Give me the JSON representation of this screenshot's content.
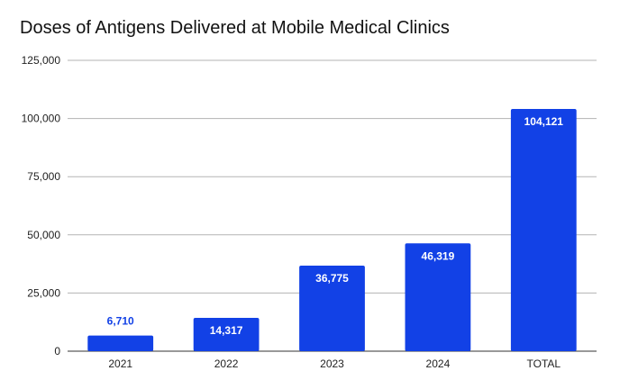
{
  "chart_data": {
    "type": "bar",
    "title": "Doses of Antigens Delivered at Mobile Medical Clinics",
    "xlabel": "",
    "ylabel": "",
    "categories": [
      "2021",
      "2022",
      "2023",
      "2024",
      "TOTAL"
    ],
    "values": [
      6710,
      14317,
      36775,
      46319,
      104121
    ],
    "value_labels": [
      "6,710",
      "14,317",
      "36,775",
      "46,319",
      "104,121"
    ],
    "ylim": [
      0,
      125000
    ],
    "yticks": [
      0,
      25000,
      50000,
      75000,
      100000,
      125000
    ],
    "ytick_labels": [
      "0",
      "25,000",
      "50,000",
      "75,000",
      "100,000",
      "125,000"
    ],
    "grid": true,
    "legend": "none",
    "colors": {
      "bar": "#1241e6",
      "label_outside": "#1241e6",
      "label_inside": "#ffffff",
      "grid": "#b3b3b3",
      "axis": "#333333"
    }
  }
}
